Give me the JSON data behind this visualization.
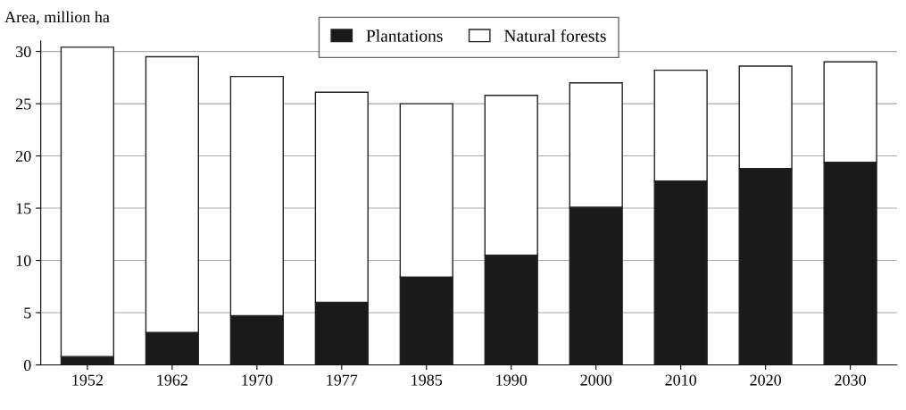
{
  "chart_data": {
    "type": "bar",
    "stacked": true,
    "ylabel": "Area, million ha",
    "categories": [
      "1952",
      "1962",
      "1970",
      "1977",
      "1985",
      "1990",
      "2000",
      "2010",
      "2020",
      "2030"
    ],
    "series": [
      {
        "name": "Plantations",
        "color": "#1a1a1a",
        "values": [
          0.8,
          3.1,
          4.7,
          6.0,
          8.4,
          10.5,
          15.1,
          17.6,
          18.8,
          19.4
        ]
      },
      {
        "name": "Natural forests",
        "color": "#ffffff",
        "values": [
          29.6,
          26.4,
          22.9,
          20.1,
          16.6,
          15.3,
          11.9,
          10.6,
          9.8,
          9.6
        ]
      }
    ],
    "ylim": [
      0,
      31
    ],
    "yticks": [
      0,
      5,
      10,
      15,
      20,
      25,
      30
    ],
    "grid": "y",
    "legend": "top"
  }
}
